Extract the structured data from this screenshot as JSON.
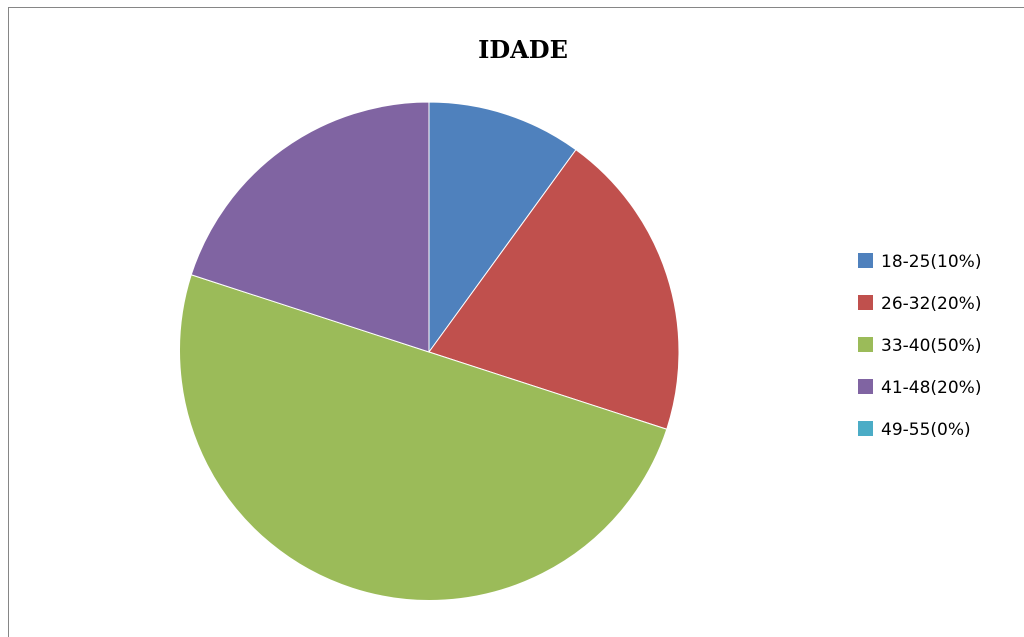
{
  "chart_data": {
    "type": "pie",
    "title": "IDADE",
    "categories": [
      "18-25(10%)",
      "26-32(20%)",
      "33-40(50%)",
      "41-48(20%)",
      "49-55(0%)"
    ],
    "values": [
      10,
      20,
      50,
      20,
      0
    ],
    "colors": [
      "#4F81BD",
      "#C0504D",
      "#9BBB59",
      "#8064A2",
      "#4BACC6"
    ],
    "legend_position": "right",
    "start_angle": "12 o'clock, clockwise"
  }
}
